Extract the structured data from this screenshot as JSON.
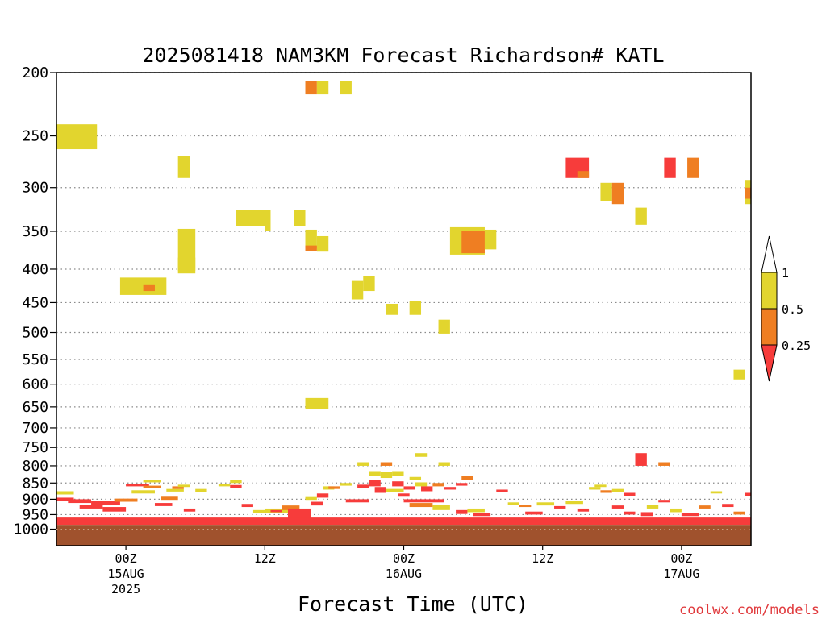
{
  "chart_data": {
    "type": "heatmap",
    "title": "2025081418 NAM3KM Forecast Richardson# KATL",
    "xlabel": "Forecast Time (UTC)",
    "ylabel": "",
    "credit": "coolwx.com/models",
    "y_scale": "log",
    "y_reversed": true,
    "ylim": [
      1060,
      200
    ],
    "y_ticks": [
      200,
      250,
      300,
      350,
      400,
      450,
      500,
      550,
      600,
      650,
      700,
      750,
      800,
      850,
      900,
      950,
      1000
    ],
    "grid": "dotted horizontal at each labeled level",
    "xlim_hours": [
      0,
      60
    ],
    "x_ticks": [
      {
        "hour": 6,
        "line1": "00Z",
        "line2": "15AUG",
        "line3": "2025"
      },
      {
        "hour": 18,
        "line1": "12Z",
        "line2": "",
        "line3": ""
      },
      {
        "hour": 30,
        "line1": "00Z",
        "line2": "16AUG",
        "line3": ""
      },
      {
        "hour": 42,
        "line1": "12Z",
        "line2": "",
        "line3": ""
      },
      {
        "hour": 54,
        "line1": "00Z",
        "line2": "17AUG",
        "line3": ""
      }
    ],
    "legend": {
      "placement": "right",
      "labels": [
        "1",
        "0.5",
        "0.25"
      ],
      "categories": [
        {
          "name": "0.5-1",
          "color": "#e2d52e"
        },
        {
          "name": "0.25-0.5",
          "color": "#ef7e22"
        },
        {
          "name": "<0.25",
          "color": "#f73c3b"
        }
      ]
    },
    "ground": {
      "color": "#a0522d",
      "top_pressure": 985
    },
    "colors": {
      "y": "#e2d52e",
      "o": "#ef7e22",
      "r": "#f73c3b"
    },
    "cell_format": "[hour_start, hour_end, pressure_top_mb, pressure_bottom_mb, category]",
    "cells": [
      [
        0.0,
        3.5,
        240,
        262,
        "y"
      ],
      [
        10.5,
        11.5,
        268,
        290,
        "y"
      ],
      [
        5.5,
        9.5,
        412,
        438,
        "y"
      ],
      [
        7.5,
        8.5,
        422,
        432,
        "o"
      ],
      [
        10.5,
        12.0,
        384,
        402,
        "y"
      ],
      [
        10.5,
        12.0,
        347,
        406,
        "y"
      ],
      [
        15.5,
        18.5,
        325,
        344,
        "y"
      ],
      [
        18.0,
        18.5,
        344,
        350,
        "y"
      ],
      [
        20.5,
        21.5,
        325,
        344,
        "y"
      ],
      [
        21.5,
        22.5,
        348,
        372,
        "y"
      ],
      [
        22.5,
        23.5,
        356,
        376,
        "y"
      ],
      [
        21.5,
        22.5,
        368,
        375,
        "o"
      ],
      [
        21.5,
        22.5,
        206,
        216,
        "o"
      ],
      [
        22.5,
        23.5,
        206,
        216,
        "y"
      ],
      [
        24.5,
        25.5,
        206,
        216,
        "y"
      ],
      [
        25.5,
        26.5,
        417,
        445,
        "y"
      ],
      [
        26.5,
        27.5,
        410,
        432,
        "y"
      ],
      [
        28.5,
        29.5,
        452,
        470,
        "y"
      ],
      [
        30.5,
        31.5,
        448,
        470,
        "y"
      ],
      [
        33.0,
        34.0,
        478,
        502,
        "y"
      ],
      [
        34.0,
        37.0,
        345,
        380,
        "y"
      ],
      [
        35.0,
        37.0,
        350,
        378,
        "o"
      ],
      [
        37.0,
        38.0,
        348,
        373,
        "y"
      ],
      [
        44.0,
        46.0,
        270,
        290,
        "r"
      ],
      [
        45.0,
        46.0,
        283,
        290,
        "o"
      ],
      [
        47.0,
        48.0,
        295,
        315,
        "y"
      ],
      [
        48.0,
        49.0,
        295,
        318,
        "o"
      ],
      [
        50.0,
        51.0,
        322,
        342,
        "y"
      ],
      [
        52.5,
        53.5,
        270,
        290,
        "r"
      ],
      [
        54.5,
        55.5,
        270,
        290,
        "o"
      ],
      [
        59.5,
        60.0,
        292,
        318,
        "y"
      ],
      [
        59.5,
        60.0,
        300,
        312,
        "o"
      ],
      [
        21.5,
        23.5,
        630,
        655,
        "y"
      ],
      [
        58.5,
        59.5,
        570,
        590,
        "y"
      ],
      [
        50.0,
        51.0,
        765,
        800,
        "r"
      ],
      [
        52.0,
        53.0,
        790,
        800,
        "o"
      ],
      [
        26.0,
        27.0,
        790,
        800,
        "y"
      ],
      [
        28.0,
        29.0,
        790,
        800,
        "o"
      ],
      [
        31.0,
        32.0,
        765,
        775,
        "y"
      ],
      [
        33.0,
        34.0,
        790,
        800,
        "y"
      ],
      [
        27.0,
        28.0,
        815,
        828,
        "y"
      ],
      [
        28.0,
        29.0,
        818,
        835,
        "y"
      ],
      [
        29.0,
        30.0,
        815,
        828,
        "y"
      ],
      [
        30.5,
        31.5,
        832,
        842,
        "y"
      ],
      [
        35.0,
        36.0,
        830,
        840,
        "o"
      ],
      [
        0.0,
        1.5,
        875,
        885,
        "y"
      ],
      [
        0.0,
        1.5,
        895,
        905,
        "r"
      ],
      [
        1.0,
        3.0,
        900,
        912,
        "r"
      ],
      [
        2.0,
        4.0,
        918,
        930,
        "r"
      ],
      [
        3.0,
        5.5,
        906,
        918,
        "r"
      ],
      [
        4.0,
        6.0,
        925,
        940,
        "r"
      ],
      [
        5.0,
        7.0,
        898,
        908,
        "o"
      ],
      [
        6.0,
        8.0,
        852,
        860,
        "r"
      ],
      [
        6.5,
        8.5,
        872,
        882,
        "y"
      ],
      [
        7.5,
        9.0,
        858,
        866,
        "o"
      ],
      [
        7.5,
        9.0,
        840,
        848,
        "y"
      ],
      [
        8.5,
        10.0,
        912,
        922,
        "r"
      ],
      [
        9.0,
        10.5,
        892,
        902,
        "o"
      ],
      [
        9.5,
        11.0,
        868,
        876,
        "y"
      ],
      [
        10.0,
        11.0,
        860,
        868,
        "o"
      ],
      [
        10.5,
        11.5,
        855,
        862,
        "y"
      ],
      [
        11.0,
        12.0,
        930,
        940,
        "r"
      ],
      [
        12.0,
        13.0,
        868,
        878,
        "y"
      ],
      [
        14.0,
        15.0,
        852,
        860,
        "y"
      ],
      [
        15.0,
        16.0,
        840,
        850,
        "y"
      ],
      [
        15.0,
        16.0,
        856,
        866,
        "r"
      ],
      [
        16.0,
        17.0,
        915,
        925,
        "r"
      ],
      [
        17.0,
        18.0,
        935,
        945,
        "y"
      ],
      [
        18.0,
        20.0,
        930,
        945,
        "y"
      ],
      [
        18.5,
        19.5,
        935,
        942,
        "r"
      ],
      [
        19.5,
        21.0,
        920,
        935,
        "o"
      ],
      [
        20.0,
        22.0,
        930,
        975,
        "r"
      ],
      [
        21.5,
        22.5,
        893,
        902,
        "y"
      ],
      [
        22.0,
        23.0,
        908,
        920,
        "r"
      ],
      [
        22.5,
        23.5,
        882,
        895,
        "r"
      ],
      [
        23.0,
        24.0,
        860,
        870,
        "y"
      ],
      [
        23.5,
        24.5,
        860,
        868,
        "o"
      ],
      [
        24.5,
        25.5,
        850,
        858,
        "y"
      ],
      [
        25.0,
        27.0,
        900,
        910,
        "r"
      ],
      [
        26.0,
        27.0,
        855,
        865,
        "r"
      ],
      [
        27.0,
        28.0,
        842,
        860,
        "r"
      ],
      [
        27.5,
        28.5,
        862,
        880,
        "r"
      ],
      [
        28.5,
        30.0,
        868,
        878,
        "y"
      ],
      [
        29.0,
        30.0,
        845,
        860,
        "r"
      ],
      [
        29.5,
        30.5,
        882,
        892,
        "r"
      ],
      [
        30.0,
        31.0,
        860,
        870,
        "r"
      ],
      [
        31.0,
        32.0,
        848,
        860,
        "y"
      ],
      [
        31.5,
        32.5,
        860,
        875,
        "r"
      ],
      [
        32.5,
        33.5,
        850,
        860,
        "o"
      ],
      [
        33.5,
        34.5,
        862,
        870,
        "r"
      ],
      [
        34.5,
        35.5,
        850,
        858,
        "r"
      ],
      [
        30.0,
        33.5,
        900,
        910,
        "r"
      ],
      [
        30.5,
        32.5,
        912,
        925,
        "o"
      ],
      [
        32.5,
        34.0,
        918,
        935,
        "y"
      ],
      [
        34.5,
        35.5,
        935,
        948,
        "r"
      ],
      [
        35.5,
        37.0,
        930,
        942,
        "y"
      ],
      [
        36.0,
        37.5,
        945,
        955,
        "r"
      ],
      [
        38.0,
        39.0,
        870,
        878,
        "r"
      ],
      [
        39.0,
        40.0,
        910,
        918,
        "y"
      ],
      [
        40.0,
        41.0,
        918,
        925,
        "o"
      ],
      [
        40.5,
        42.0,
        940,
        950,
        "r"
      ],
      [
        41.5,
        43.0,
        910,
        920,
        "y"
      ],
      [
        43.0,
        44.0,
        922,
        930,
        "r"
      ],
      [
        44.0,
        45.5,
        905,
        915,
        "y"
      ],
      [
        45.0,
        46.0,
        930,
        940,
        "r"
      ],
      [
        46.0,
        47.0,
        862,
        870,
        "y"
      ],
      [
        46.5,
        47.5,
        855,
        862,
        "y"
      ],
      [
        47.0,
        48.0,
        872,
        880,
        "o"
      ],
      [
        48.0,
        49.0,
        868,
        878,
        "y"
      ],
      [
        48.0,
        49.0,
        920,
        930,
        "r"
      ],
      [
        49.0,
        50.0,
        940,
        950,
        "r"
      ],
      [
        49.0,
        50.0,
        880,
        890,
        "r"
      ],
      [
        50.5,
        51.5,
        942,
        955,
        "r"
      ],
      [
        51.0,
        52.0,
        918,
        930,
        "y"
      ],
      [
        52.0,
        53.0,
        902,
        910,
        "r"
      ],
      [
        53.0,
        54.0,
        930,
        942,
        "y"
      ],
      [
        54.0,
        55.5,
        945,
        955,
        "r"
      ],
      [
        55.5,
        56.5,
        920,
        930,
        "o"
      ],
      [
        56.5,
        57.5,
        875,
        882,
        "y"
      ],
      [
        57.5,
        58.5,
        915,
        925,
        "r"
      ],
      [
        58.5,
        59.5,
        940,
        950,
        "o"
      ],
      [
        59.5,
        60.0,
        880,
        890,
        "r"
      ],
      [
        0.0,
        60.0,
        960,
        985,
        "r"
      ]
    ]
  }
}
